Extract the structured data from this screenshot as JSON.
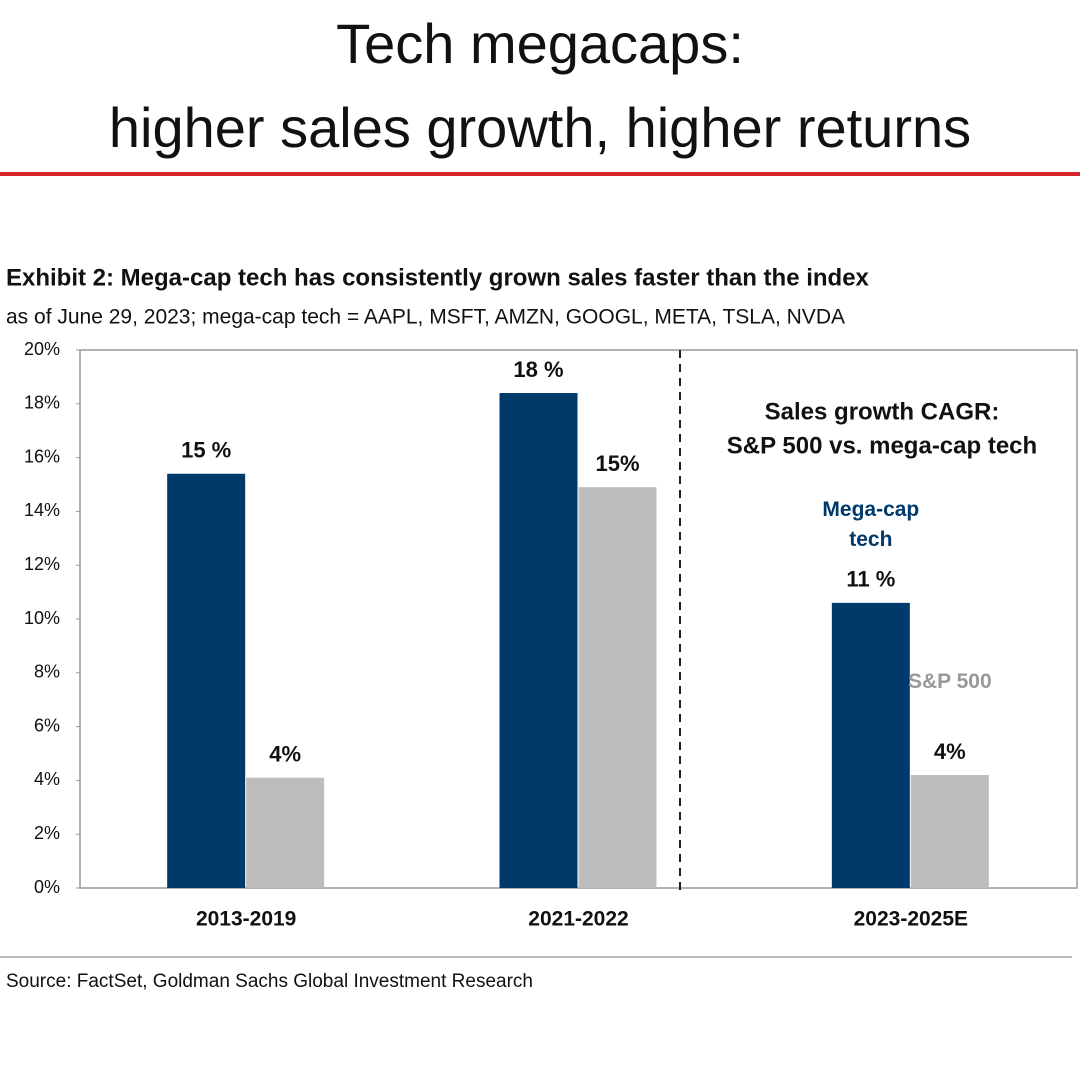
{
  "headline": [
    "Tech megacaps:",
    "higher sales growth, higher returns"
  ],
  "chart_data": {
    "type": "bar",
    "title": "Exhibit 2: Mega-cap tech has consistently grown sales faster than the index",
    "subtitle": "as of June 29, 2023; mega-cap tech = AAPL, MSFT, AMZN, GOOGL, META, TSLA, NVDA",
    "annotation": [
      "Sales growth CAGR:",
      "S&P 500 vs. mega-cap tech"
    ],
    "source": "Source: FactSet, Goldman Sachs Global Investment Research",
    "categories": [
      "2013-2019",
      "2021-2022",
      "2023-2025E"
    ],
    "series": [
      {
        "name": "Mega-cap tech",
        "color": "#003a6b",
        "values": [
          15.4,
          18.4,
          10.6
        ],
        "value_labels": [
          "15 %",
          "18 %",
          "11 %"
        ]
      },
      {
        "name": "S&P 500",
        "color": "#bdbdbd",
        "values": [
          4.1,
          14.9,
          4.2
        ],
        "value_labels": [
          "4%",
          "15%",
          "4%"
        ]
      }
    ],
    "ylim": [
      0,
      20
    ],
    "yticks": [
      {
        "value": 0,
        "label": "0%"
      },
      {
        "value": 2,
        "label": "2%"
      },
      {
        "value": 4,
        "label": "4%"
      },
      {
        "value": 6,
        "label": "6%"
      },
      {
        "value": 8,
        "label": "8%"
      },
      {
        "value": 10,
        "label": "10%"
      },
      {
        "value": 12,
        "label": "12%"
      },
      {
        "value": 14,
        "label": "14%"
      },
      {
        "value": 16,
        "label": "16%"
      },
      {
        "value": 18,
        "label": "18%"
      },
      {
        "value": 20,
        "label": "20%"
      }
    ],
    "grid": false
  }
}
